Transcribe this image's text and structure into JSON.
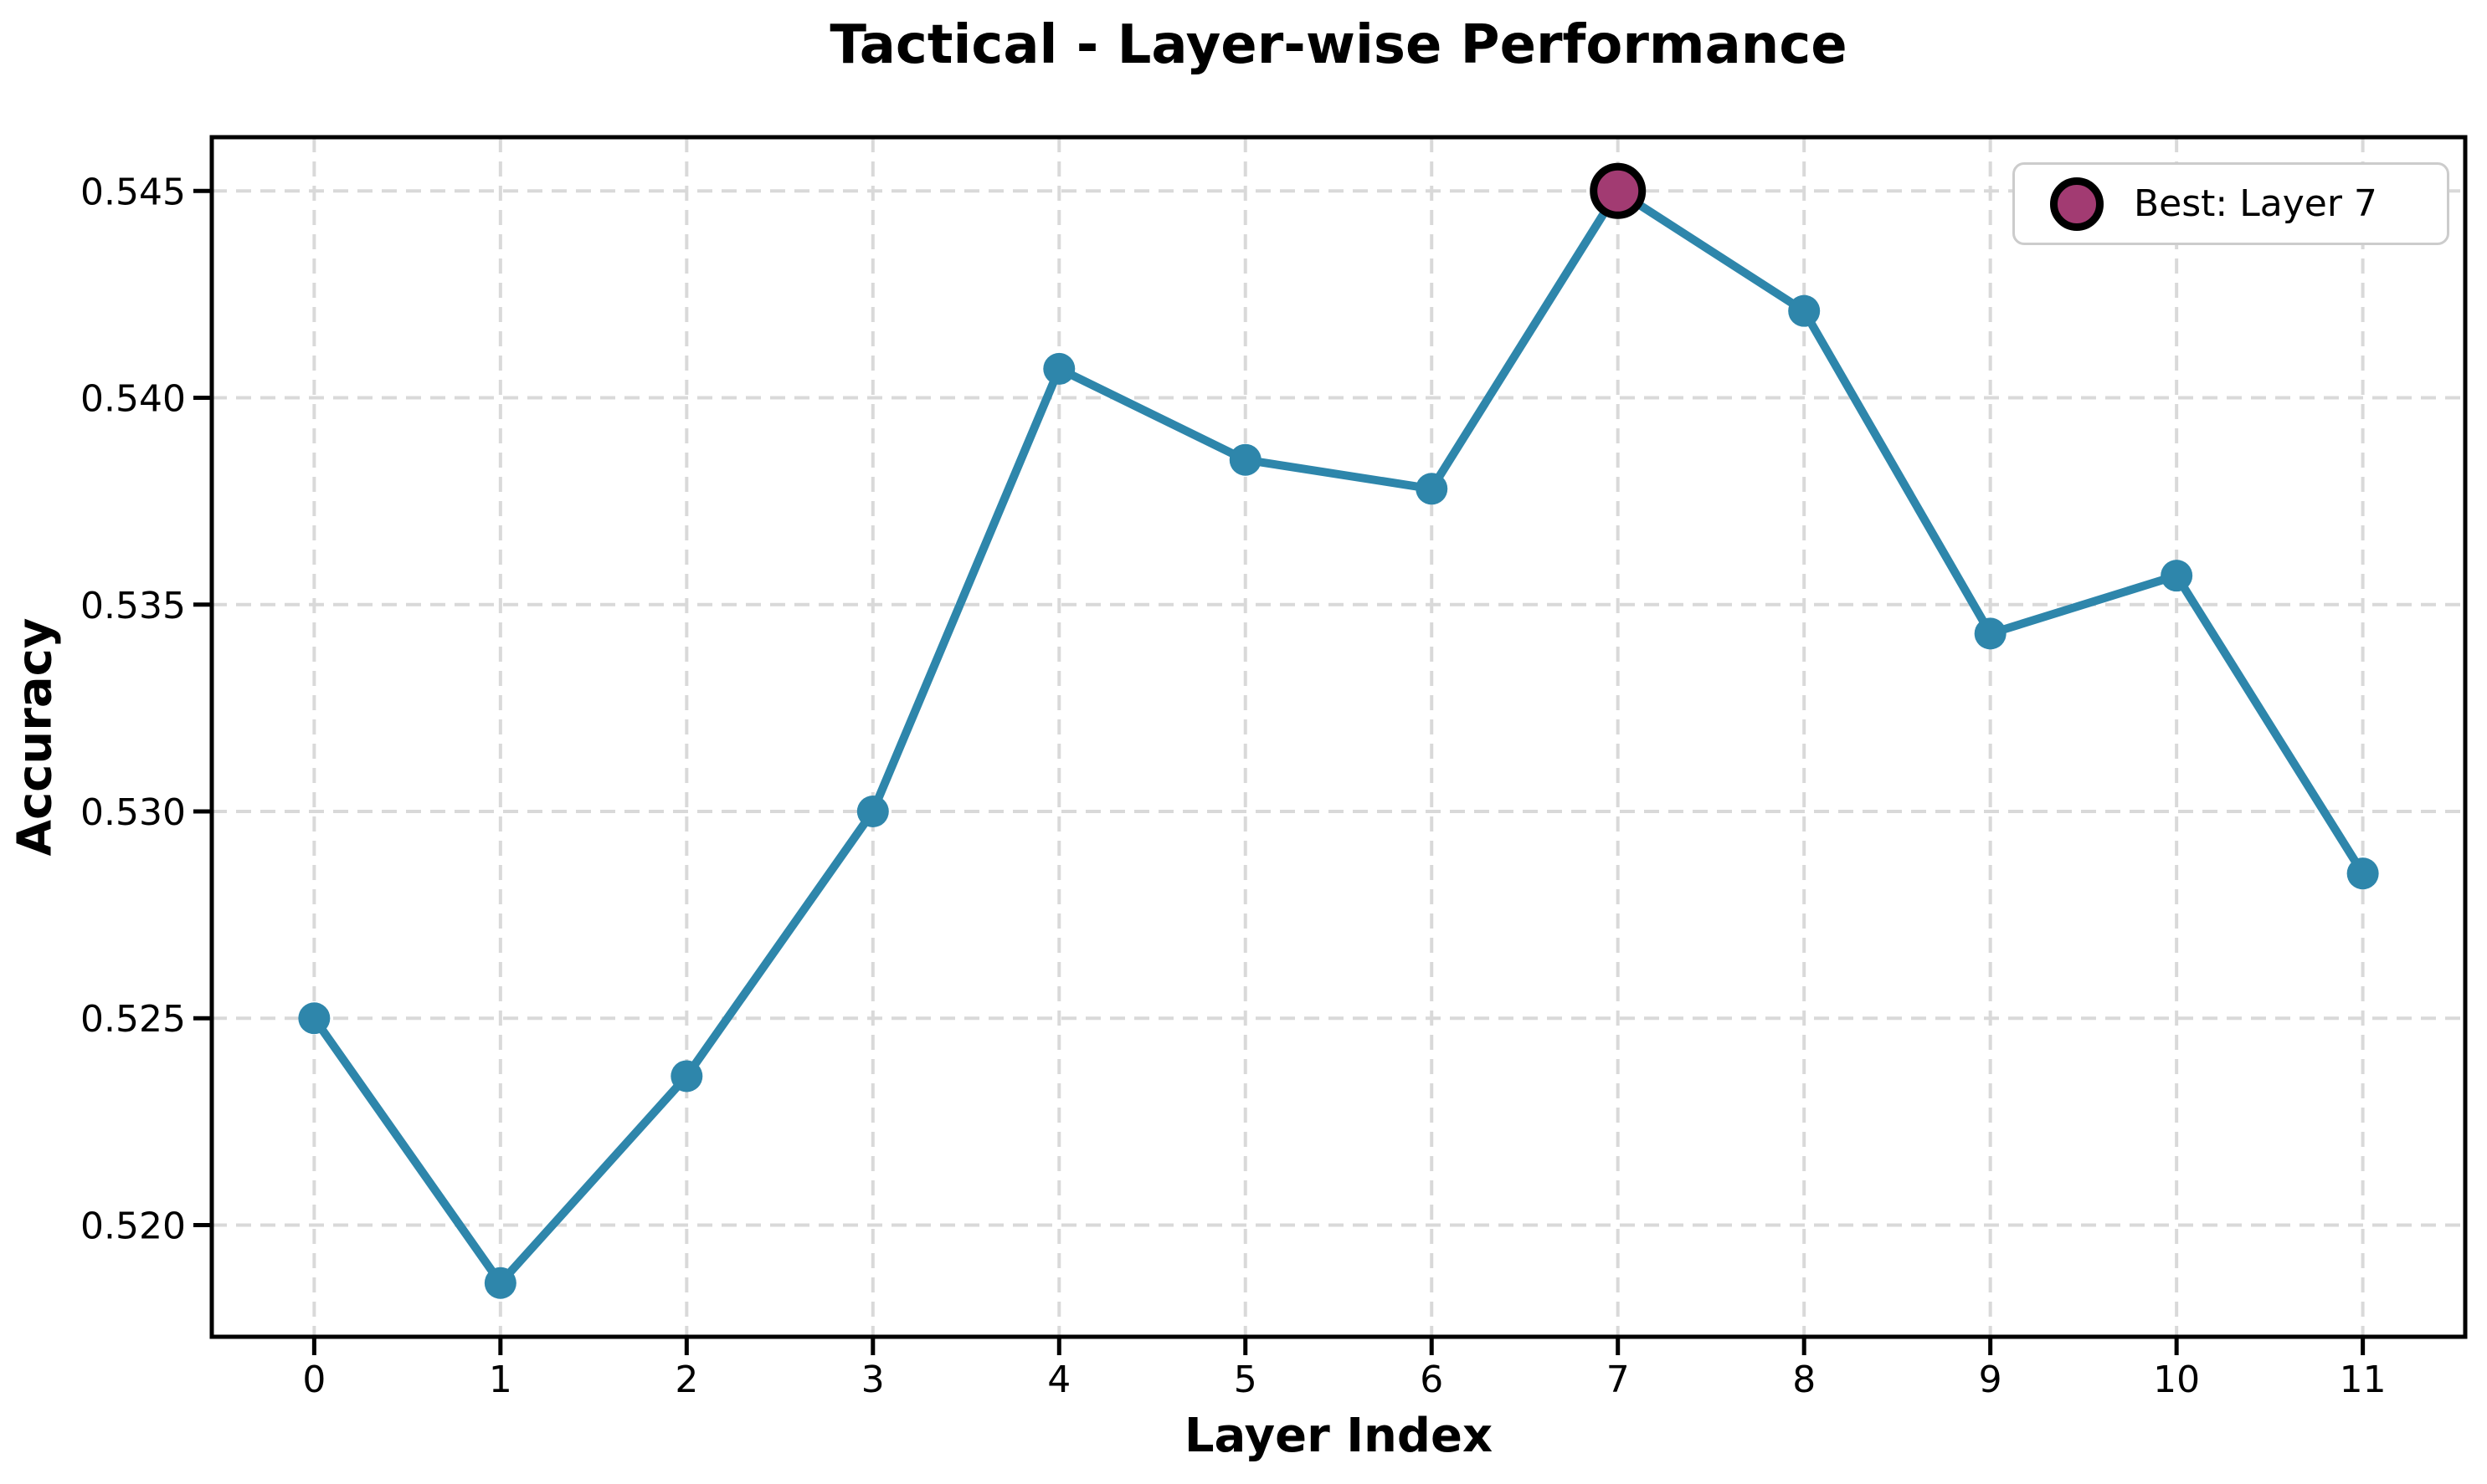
{
  "title": "Tactical - Layer-wise Performance",
  "chart_data": {
    "type": "line",
    "title": "Tactical - Layer-wise Performance",
    "xlabel": "Layer Index",
    "ylabel": "Accuracy",
    "categories": [
      0,
      1,
      2,
      3,
      4,
      5,
      6,
      7,
      8,
      9,
      10,
      11
    ],
    "x_tick_labels": [
      "0",
      "1",
      "2",
      "3",
      "4",
      "5",
      "6",
      "7",
      "8",
      "9",
      "10",
      "11"
    ],
    "series": [
      {
        "name": "Accuracy",
        "values": [
          0.525,
          0.5186,
          0.5236,
          0.53,
          0.5407,
          0.5385,
          0.5378,
          0.545,
          0.5421,
          0.5343,
          0.5357,
          0.5285
        ]
      }
    ],
    "best": {
      "layer": 7,
      "value": 0.545,
      "label": "Best: Layer 7"
    },
    "y_ticks": [
      0.52,
      0.525,
      0.53,
      0.535,
      0.54,
      0.545
    ],
    "y_tick_labels": [
      "0.520",
      "0.525",
      "0.530",
      "0.535",
      "0.540",
      "0.545"
    ],
    "ylim": [
      0.5173,
      0.5463
    ],
    "xlim": [
      -0.55,
      11.55
    ],
    "grid": true,
    "legend_position": "upper right",
    "colors": {
      "line": "#2E86AB",
      "marker": "#2E86AB",
      "best_marker_fill": "#A23B72",
      "best_marker_edge": "#000000",
      "grid": "#d9d9d9",
      "spine": "#000000",
      "text": "#000000",
      "background": "#ffffff",
      "legend_border": "#cccccc"
    }
  }
}
